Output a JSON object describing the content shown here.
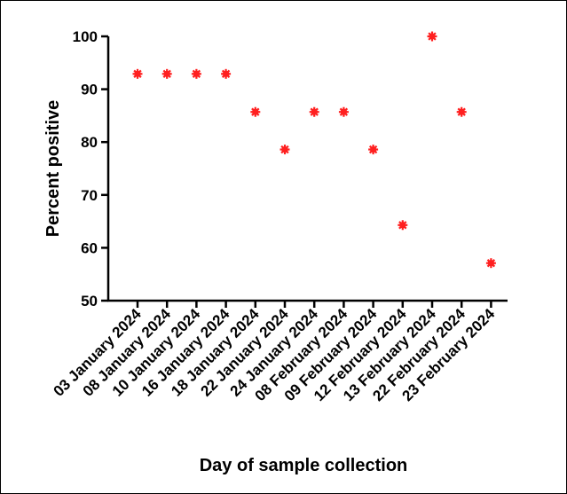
{
  "chart_data": {
    "type": "scatter",
    "title": "",
    "xlabel": "Day of sample collection",
    "ylabel": "Percent positive",
    "categories": [
      "03 January 2024",
      "08 January 2024",
      "10 January 2024",
      "16 January 2024",
      "18 January 2024",
      "22 January 2024",
      "24 January 2024",
      "08 February 2024",
      "09 February 2024",
      "12 February 2024",
      "13 February 2024",
      "22 February 2024",
      "23 February 2024"
    ],
    "values": [
      92.9,
      92.9,
      92.9,
      92.9,
      85.7,
      78.6,
      85.7,
      85.7,
      78.6,
      64.3,
      100.0,
      85.7,
      57.1
    ],
    "ylim": [
      50,
      100
    ],
    "yticks": [
      50,
      60,
      70,
      80,
      90,
      100
    ],
    "marker_color": "#ff2020",
    "grid": false
  }
}
